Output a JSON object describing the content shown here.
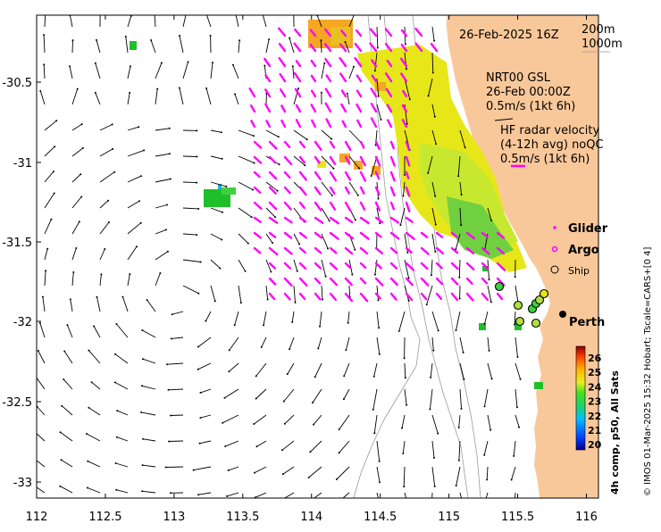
{
  "map": {
    "timestamp": "26-Feb-2025 16Z",
    "isobaths": [
      "200m",
      "1000m"
    ],
    "nrt": {
      "line1": "NRT00 GSL",
      "line2": "26-Feb 00:00Z",
      "line3": "0.5m/s (1kt 6h)"
    },
    "hf_radar": {
      "line1": "HF radar velocity",
      "line2": "(4-12h avg) noQC",
      "line3": "0.5m/s (1kt 6h)"
    },
    "legend": {
      "glider": "Glider",
      "argo": "Argo",
      "ship": "Ship"
    },
    "city": "Perth",
    "colorbar": {
      "label": "4h comp, p50, All Sats",
      "ticks": [
        "26",
        "25",
        "24",
        "23",
        "22",
        "21",
        "20"
      ]
    },
    "credit": "© IMOS 01-Mar-2025 15:32 Hobart; Tscale=CARS+[0 4]",
    "x_ticks": [
      "112",
      "112.5",
      "113",
      "113.5",
      "114",
      "114.5",
      "115",
      "115.5",
      "116"
    ],
    "y_ticks": [
      "-30.5",
      "-31",
      "-31.5",
      "-32",
      "-32.5",
      "-33"
    ],
    "colors": {
      "land": "#f9c89a",
      "radar": "#ff00ff",
      "sst_warm": "#f5a623",
      "sst_mid": "#e6e619",
      "sst_cool": "#1fbf2a",
      "vector": "#000000",
      "isobath": "#9a9a9a"
    }
  }
}
